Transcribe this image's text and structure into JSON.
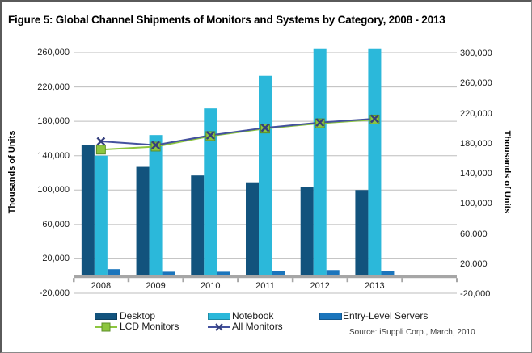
{
  "title": "Figure 5: Global Channel Shipments of Monitors and Systems by Category, 2008 - 2013",
  "source_note": "Source: iSuppli Corp., March, 2010",
  "chart_data": {
    "type": "bar",
    "title": "Figure 5: Global Channel Shipments of Monitors and Systems by Category, 2008 - 2013",
    "categories": [
      "2008",
      "2009",
      "2010",
      "2011",
      "2012",
      "2013"
    ],
    "left_axis": {
      "label": "Thousands of Units",
      "min": -20000,
      "max": 260000,
      "step": 40000,
      "tick_labels": [
        "-20,000",
        "20,000",
        "60,000",
        "100,000",
        "140,000",
        "180,000",
        "220,000",
        "260,000"
      ]
    },
    "right_axis": {
      "label": "Thousands of Units",
      "min": -20000,
      "max": 300000,
      "step": 40000,
      "tick_labels": [
        "-20,000",
        "20,000",
        "60,000",
        "100,000",
        "140,000",
        "180,000",
        "220,000",
        "260,000",
        "300,000"
      ]
    },
    "grid": "horizontal",
    "legend_position": "bottom",
    "bar_series": [
      {
        "name": "Desktop",
        "axis": "left",
        "color": "#12537d",
        "values": [
          152000,
          127000,
          117000,
          109000,
          104000,
          100000
        ]
      },
      {
        "name": "Notebook",
        "axis": "left",
        "color": "#2bb8da",
        "values": [
          140000,
          164000,
          195000,
          233000,
          264000,
          264000
        ]
      },
      {
        "name": "Entry-Level Servers",
        "axis": "left",
        "color": "#1b75bc",
        "values": [
          8000,
          5000,
          5000,
          6000,
          7000,
          6000
        ]
      }
    ],
    "line_series": [
      {
        "name": "LCD Monitors",
        "axis": "right",
        "color": "#8dc63f",
        "marker": "square",
        "marker_border": "#5d8f28",
        "values": [
          172000,
          176000,
          190000,
          200000,
          207000,
          212000
        ]
      },
      {
        "name": "All Monitors",
        "axis": "right",
        "color": "#44519e",
        "marker": "x",
        "marker_border": "#353f7d",
        "values": [
          183000,
          178000,
          191000,
          201000,
          208000,
          213000
        ]
      }
    ],
    "colors": {
      "gridline": "#bdbdbd",
      "baseline": "#a6a6a6",
      "tick": "#a6a6a6"
    }
  },
  "legend": {
    "items": [
      {
        "label": "Desktop",
        "type": "swatch",
        "color": "#12537d"
      },
      {
        "label": "Notebook",
        "type": "swatch",
        "color": "#2bb8da"
      },
      {
        "label": "Entry-Level Servers",
        "type": "swatch",
        "color": "#1b75bc"
      },
      {
        "label": "LCD Monitors",
        "type": "line-square",
        "color": "#8dc63f"
      },
      {
        "label": "All Monitors",
        "type": "line-x",
        "color": "#44519e"
      }
    ]
  }
}
